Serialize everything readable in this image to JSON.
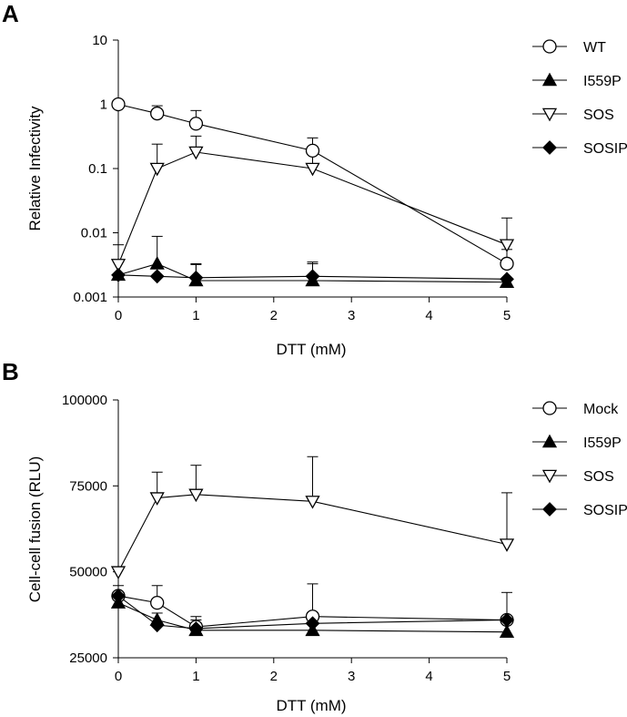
{
  "chart_data": [
    {
      "panel_label": "A",
      "type": "line",
      "title": "",
      "xlabel": "DTT (mM)",
      "ylabel": "Relative Infectivity",
      "yscale": "log",
      "xlim": [
        0,
        5
      ],
      "ylim": [
        0.001,
        10
      ],
      "x_ticks": [
        0,
        1,
        2,
        3,
        4,
        5
      ],
      "y_ticks": [
        0.001,
        0.01,
        0.1,
        1,
        10
      ],
      "y_tick_labels": [
        "0.001",
        "0.01",
        "0.1",
        "1",
        "10"
      ],
      "legend_position": "right",
      "x": [
        0,
        0.5,
        1,
        2.5,
        5
      ],
      "series": [
        {
          "name": "WT",
          "marker": "circle-open",
          "values": [
            1.0,
            0.72,
            0.5,
            0.19,
            0.0033
          ],
          "error_upper": [
            1.0,
            0.95,
            0.8,
            0.3,
            0.0055
          ]
        },
        {
          "name": "I559P",
          "marker": "triangle-up-filled",
          "values": [
            0.0022,
            0.0033,
            0.0018,
            0.0018,
            0.0017
          ],
          "error_upper": [
            0.0035,
            0.0088,
            0.0032,
            0.0033,
            0.0017
          ]
        },
        {
          "name": "SOS",
          "marker": "triangle-down-open",
          "values": [
            0.0032,
            0.1,
            0.18,
            0.1,
            0.0065
          ],
          "error_upper": [
            0.0065,
            0.24,
            0.32,
            0.22,
            0.017
          ]
        },
        {
          "name": "SOSIP",
          "marker": "diamond-filled",
          "values": [
            0.0022,
            0.0021,
            0.002,
            0.0021,
            0.0019
          ],
          "error_upper": [
            0.0038,
            0.0021,
            0.0033,
            0.0035,
            0.0019
          ]
        }
      ]
    },
    {
      "panel_label": "B",
      "type": "line",
      "title": "",
      "xlabel": "DTT (mM)",
      "ylabel": "Cell-cell fusion (RLU)",
      "yscale": "linear",
      "xlim": [
        0,
        5
      ],
      "ylim": [
        25000,
        100000
      ],
      "x_ticks": [
        0,
        1,
        2,
        3,
        4,
        5
      ],
      "y_ticks": [
        25000,
        50000,
        75000,
        100000
      ],
      "y_tick_labels": [
        "25000",
        "50000",
        "75000",
        "100000"
      ],
      "legend_position": "right",
      "x": [
        0,
        0.5,
        1,
        2.5,
        5
      ],
      "series": [
        {
          "name": "Mock",
          "marker": "circle-open",
          "values": [
            43000,
            41000,
            34000,
            37000,
            36000
          ],
          "error_upper": [
            46000,
            46000,
            37000,
            46500,
            44000
          ]
        },
        {
          "name": "I559P",
          "marker": "triangle-up-filled",
          "values": [
            41000,
            36000,
            33000,
            33000,
            32500
          ],
          "error_upper": [
            43500,
            38000,
            35000,
            35000,
            32500
          ]
        },
        {
          "name": "SOS",
          "marker": "triangle-down-open",
          "values": [
            50000,
            71500,
            72500,
            70500,
            58000
          ],
          "error_upper": [
            51000,
            79000,
            81000,
            83500,
            73000
          ]
        },
        {
          "name": "SOSIP",
          "marker": "diamond-filled",
          "values": [
            43000,
            34500,
            33500,
            35000,
            36000
          ],
          "error_upper": [
            43000,
            34500,
            36000,
            35000,
            36000
          ]
        }
      ]
    }
  ]
}
